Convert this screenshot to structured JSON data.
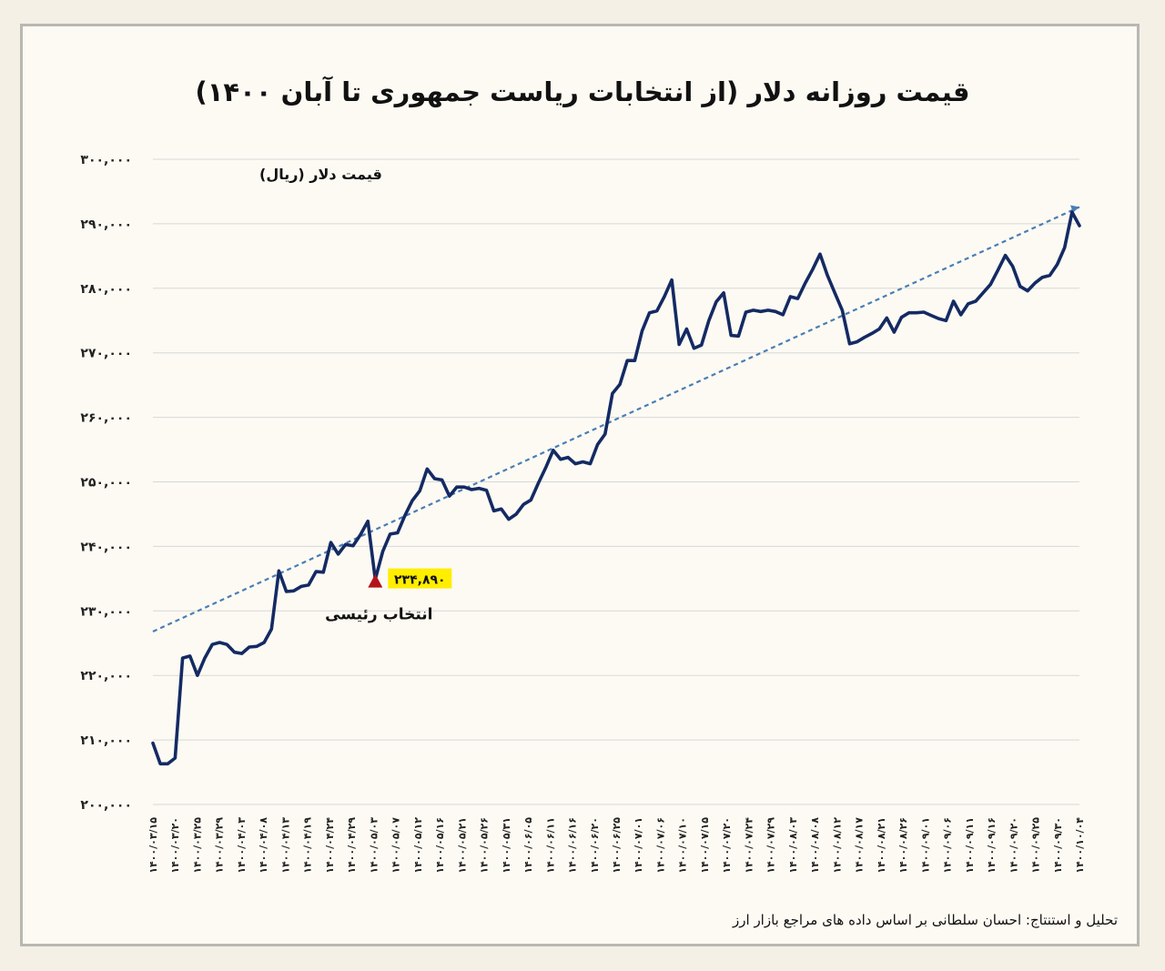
{
  "title": "قیمت روزانه دلار (از انتخابات ریاست جمهوری تا آبان ۱۴۰۰)",
  "credit": "تحلیل و استنتاج: احسان سلطانی بر اساس داده های مراجع بازار ارز",
  "colors": {
    "line": "#142a63",
    "trend": "#4a7db5",
    "marker": "#b3141b",
    "highlight": "#ffee00",
    "grid": "#d8d8d8"
  },
  "chart_data": {
    "type": "line",
    "title": "قیمت روزانه دلار (از انتخابات ریاست جمهوری تا آبان ۱۴۰۰)",
    "ylabel": "قیمت دلار (ریال)",
    "xlabel": "",
    "ylim": [
      200000,
      300000
    ],
    "yticks": [
      "۲۰۰,۰۰۰",
      "۲۱۰,۰۰۰",
      "۲۲۰,۰۰۰",
      "۲۳۰,۰۰۰",
      "۲۴۰,۰۰۰",
      "۲۵۰,۰۰۰",
      "۲۶۰,۰۰۰",
      "۲۷۰,۰۰۰",
      "۲۸۰,۰۰۰",
      "۲۹۰,۰۰۰",
      "۳۰۰,۰۰۰"
    ],
    "yticks_values": [
      200000,
      210000,
      220000,
      230000,
      240000,
      250000,
      260000,
      270000,
      280000,
      290000,
      300000
    ],
    "xticks": [
      "۱۴۰۰/۰۳/۱۵",
      "۱۴۰۰/۰۳/۲۰",
      "۱۴۰۰/۰۳/۲۵",
      "۱۴۰۰/۰۳/۲۹",
      "۱۴۰۰/۰۴/۰۳",
      "۱۴۰۰/۰۴/۰۸",
      "۱۴۰۰/۰۴/۱۳",
      "۱۴۰۰/۰۴/۱۹",
      "۱۴۰۰/۰۴/۲۴",
      "۱۴۰۰/۰۴/۲۹",
      "۱۴۰۰/۰۵/۰۳",
      "۱۴۰۰/۰۵/۰۷",
      "۱۴۰۰/۰۵/۱۲",
      "۱۴۰۰/۰۵/۱۶",
      "۱۴۰۰/۰۵/۲۱",
      "۱۴۰۰/۰۵/۲۶",
      "۱۴۰۰/۰۵/۳۱",
      "۱۴۰۰/۰۶/۰۵",
      "۱۴۰۰/۰۶/۱۱",
      "۱۴۰۰/۰۶/۱۶",
      "۱۴۰۰/۰۶/۲۰",
      "۱۴۰۰/۰۶/۲۵",
      "۱۴۰۰/۰۷/۰۱",
      "۱۴۰۰/۰۷/۰۶",
      "۱۴۰۰/۰۷/۱۰",
      "۱۴۰۰/۰۷/۱۵",
      "۱۴۰۰/۰۷/۲۰",
      "۱۴۰۰/۰۷/۲۴",
      "۱۴۰۰/۰۷/۲۹",
      "۱۴۰۰/۰۸/۰۳",
      "۱۴۰۰/۰۸/۰۸",
      "۱۴۰۰/۰۸/۱۲",
      "۱۴۰۰/۰۸/۱۷",
      "۱۴۰۰/۰۸/۲۱",
      "۱۴۰۰/۰۸/۲۶",
      "۱۴۰۰/۰۹/۰۱",
      "۱۴۰۰/۰۹/۰۶",
      "۱۴۰۰/۰۹/۱۱",
      "۱۴۰۰/۰۹/۱۶",
      "۱۴۰۰/۰۹/۲۰",
      "۱۴۰۰/۰۹/۲۵",
      "۱۴۰۰/۰۹/۳۰",
      "۱۴۰۰/۱۰/۰۴"
    ],
    "series": [
      {
        "values": [
          209500,
          206300,
          206300,
          207200,
          222700,
          223000,
          220000,
          222700,
          224800,
          225100,
          224800,
          223600,
          223400,
          224400,
          224500,
          225100,
          227200,
          236200,
          233000,
          233100,
          233800,
          234000,
          236100,
          236000,
          240600,
          238800,
          240300,
          240100,
          241800,
          243900,
          234890,
          239200,
          241900,
          242100,
          244800,
          247100,
          248600,
          252000,
          250500,
          250300,
          247800,
          249200,
          249200,
          248800,
          249000,
          248700,
          245500,
          245800,
          244200,
          245000,
          246500,
          247200,
          249800,
          252200,
          254900,
          253500,
          253800,
          252800,
          253100,
          252800,
          255800,
          257400,
          263700,
          265100,
          268800,
          268800,
          273400,
          276200,
          276500,
          278700,
          281300,
          271300,
          273700,
          270700,
          271200,
          275000,
          277900,
          279300,
          272700,
          272600,
          276300,
          276600,
          276400,
          276600,
          276400,
          275900,
          278700,
          278400,
          280800,
          282900,
          285300,
          282000,
          279300,
          276600,
          271400,
          271700,
          272400,
          273000,
          273700,
          275400,
          273200,
          275500,
          276200,
          276200,
          276300,
          275800,
          275300,
          275000,
          278000,
          275900,
          277600,
          278000,
          279300,
          280600,
          282800,
          285100,
          283400,
          280300,
          279600,
          280800,
          281700,
          282000,
          283700,
          286300,
          291800,
          289700
        ]
      }
    ],
    "trend": {
      "start": 226800,
      "end": 292600,
      "style": "dashed"
    },
    "annotation": {
      "index": 30,
      "value": 234890,
      "value_label": "۲۳۴,۸۹۰",
      "label": "انتخاب رئیسی"
    },
    "grid": true,
    "legend": "none"
  }
}
